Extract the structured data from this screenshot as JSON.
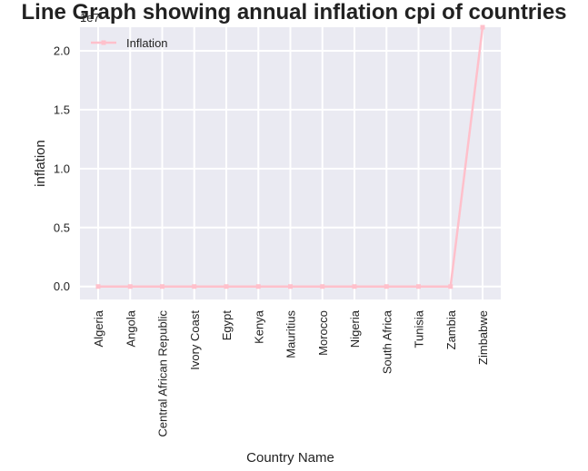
{
  "chart_data": {
    "type": "line",
    "title": "Line Graph showing annual inflation cpi of countries",
    "xlabel": "Country Name",
    "ylabel": "inflation",
    "y_offset_text": "1e7",
    "categories": [
      "Algeria",
      "Angola",
      "Central African Republic",
      "Ivory Coast",
      "Egypt",
      "Kenya",
      "Mauritius",
      "Morocco",
      "Nigeria",
      "South Africa",
      "Tunisia",
      "Zambia",
      "Zimbabwe"
    ],
    "series": [
      {
        "name": "Inflation",
        "values": [
          4,
          17,
          3,
          2,
          10,
          9,
          4,
          1,
          12,
          6,
          4,
          7,
          22000000
        ]
      }
    ],
    "yticks": [
      "0.0",
      "0.5",
      "1.0",
      "1.5",
      "2.0"
    ],
    "ytick_values": [
      0,
      5000000,
      10000000,
      15000000,
      20000000
    ],
    "ylim": [
      -1100000,
      22000000
    ],
    "grid": true,
    "legend_position": "upper-left",
    "line_color": "#ffc0cb",
    "background_color": "#eaeaf2"
  }
}
